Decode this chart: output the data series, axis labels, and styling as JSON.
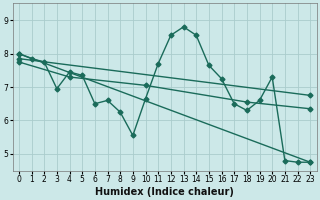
{
  "xlabel": "Humidex (Indice chaleur)",
  "xlim": [
    -0.5,
    23.5
  ],
  "ylim": [
    4.5,
    9.5
  ],
  "yticks": [
    5,
    6,
    7,
    8,
    9
  ],
  "xticks": [
    0,
    1,
    2,
    3,
    4,
    5,
    6,
    7,
    8,
    9,
    10,
    11,
    12,
    13,
    14,
    15,
    16,
    17,
    18,
    19,
    20,
    21,
    22,
    23
  ],
  "bg_color": "#cce8e8",
  "grid_color": "#aacccc",
  "line_color": "#1a6b5a",
  "line_width": 1.0,
  "marker": "D",
  "marker_size": 2.5,
  "lines": [
    {
      "x": [
        0,
        1,
        2,
        3,
        4,
        5,
        6,
        7,
        8,
        9,
        10,
        11,
        12,
        13,
        14,
        15,
        16,
        17,
        18,
        19,
        20,
        21,
        22,
        23
      ],
      "y": [
        8.0,
        7.85,
        7.75,
        6.95,
        7.45,
        7.35,
        6.5,
        6.6,
        6.25,
        5.55,
        6.65,
        7.7,
        8.55,
        8.8,
        8.55,
        7.65,
        7.25,
        6.5,
        6.3,
        6.6,
        7.3,
        4.8,
        4.75,
        4.75
      ]
    },
    {
      "x": [
        0,
        23
      ],
      "y": [
        8.0,
        4.75
      ]
    },
    {
      "x": [
        0,
        23
      ],
      "y": [
        7.85,
        6.75
      ]
    },
    {
      "x": [
        0,
        4,
        10,
        18,
        23
      ],
      "y": [
        7.75,
        7.3,
        7.05,
        6.55,
        6.35
      ]
    }
  ]
}
